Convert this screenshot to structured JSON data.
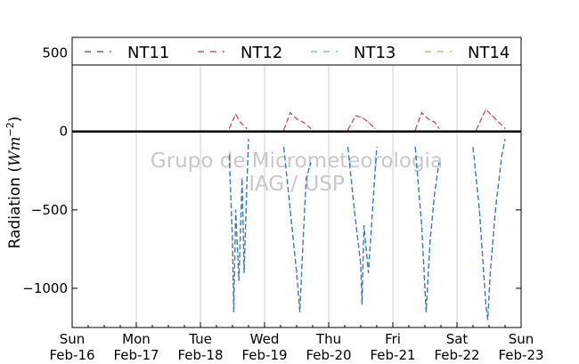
{
  "chart_data": {
    "type": "line",
    "title": "",
    "xlabel": "",
    "ylabel": "Radiation (Wm⁻²)",
    "ylabel_base": "Radiation (",
    "ylabel_unit": "Wm",
    "ylabel_exp": "−2",
    "ylabel_close": ")",
    "ylim": [
      -1250,
      600
    ],
    "yticks": [
      {
        "value": 500,
        "label": "500"
      },
      {
        "value": 0,
        "label": "0"
      },
      {
        "value": -500,
        "label": "−500"
      },
      {
        "value": -1000,
        "label": "−1000"
      }
    ],
    "xlim": [
      0,
      7
    ],
    "xticks": [
      {
        "value": 0,
        "day": "Sun",
        "date": "Feb-16"
      },
      {
        "value": 1,
        "day": "Mon",
        "date": "Feb-17"
      },
      {
        "value": 2,
        "day": "Tue",
        "date": "Feb-18"
      },
      {
        "value": 3,
        "day": "Wed",
        "date": "Feb-19"
      },
      {
        "value": 4,
        "day": "Thu",
        "date": "Feb-20"
      },
      {
        "value": 5,
        "day": "Fri",
        "date": "Feb-21"
      },
      {
        "value": 6,
        "day": "Sat",
        "date": "Feb-22"
      },
      {
        "value": 7,
        "day": "Sun",
        "date": "Feb-23"
      }
    ],
    "grid": "vertical",
    "legend_position": "top",
    "zero_line": true,
    "watermark": [
      "Grupo de Micrometeorologia",
      "IAG / USP"
    ],
    "series": [
      {
        "name": "NT11",
        "color": "#3a7ab5",
        "dash": "dashed",
        "points": [
          [
            2.45,
            -150
          ],
          [
            2.5,
            -700
          ],
          [
            2.52,
            -1150
          ],
          [
            2.55,
            -500
          ],
          [
            2.6,
            -950
          ],
          [
            2.65,
            -300
          ],
          [
            2.68,
            -900
          ],
          [
            2.72,
            -400
          ],
          [
            2.75,
            -50
          ],
          [
            3.3,
            -100
          ],
          [
            3.4,
            -500
          ],
          [
            3.5,
            -900
          ],
          [
            3.55,
            -1150
          ],
          [
            3.6,
            -700
          ],
          [
            3.65,
            -300
          ],
          [
            3.72,
            -200
          ],
          [
            4.3,
            -100
          ],
          [
            4.4,
            -500
          ],
          [
            4.5,
            -850
          ],
          [
            4.52,
            -1100
          ],
          [
            4.55,
            -600
          ],
          [
            4.62,
            -900
          ],
          [
            4.7,
            -400
          ],
          [
            4.75,
            -100
          ],
          [
            5.35,
            -100
          ],
          [
            5.45,
            -600
          ],
          [
            5.52,
            -1150
          ],
          [
            5.58,
            -700
          ],
          [
            5.65,
            -400
          ],
          [
            5.72,
            -200
          ],
          [
            6.25,
            -100
          ],
          [
            6.35,
            -500
          ],
          [
            6.45,
            -1100
          ],
          [
            6.48,
            -1200
          ],
          [
            6.52,
            -900
          ],
          [
            6.6,
            -500
          ],
          [
            6.7,
            -150
          ],
          [
            6.75,
            -50
          ]
        ]
      },
      {
        "name": "NT12",
        "color": "#c85a5a",
        "dash": "dashed",
        "points": [
          [
            2.45,
            20
          ],
          [
            2.55,
            110
          ],
          [
            2.62,
            60
          ],
          [
            2.72,
            20
          ],
          [
            3.3,
            10
          ],
          [
            3.4,
            120
          ],
          [
            3.5,
            80
          ],
          [
            3.6,
            60
          ],
          [
            3.72,
            20
          ],
          [
            4.3,
            10
          ],
          [
            4.42,
            100
          ],
          [
            4.52,
            90
          ],
          [
            4.62,
            60
          ],
          [
            4.72,
            20
          ],
          [
            5.35,
            10
          ],
          [
            5.45,
            120
          ],
          [
            5.55,
            80
          ],
          [
            5.65,
            60
          ],
          [
            5.72,
            20
          ],
          [
            6.3,
            10
          ],
          [
            6.45,
            140
          ],
          [
            6.55,
            100
          ],
          [
            6.65,
            60
          ],
          [
            6.75,
            20
          ]
        ]
      },
      {
        "name": "NT13",
        "color": "#6fd1b8",
        "dash": "dashed",
        "points": []
      },
      {
        "name": "NT14",
        "color": "#b6c86a",
        "dash": "dashed",
        "points": []
      }
    ]
  }
}
